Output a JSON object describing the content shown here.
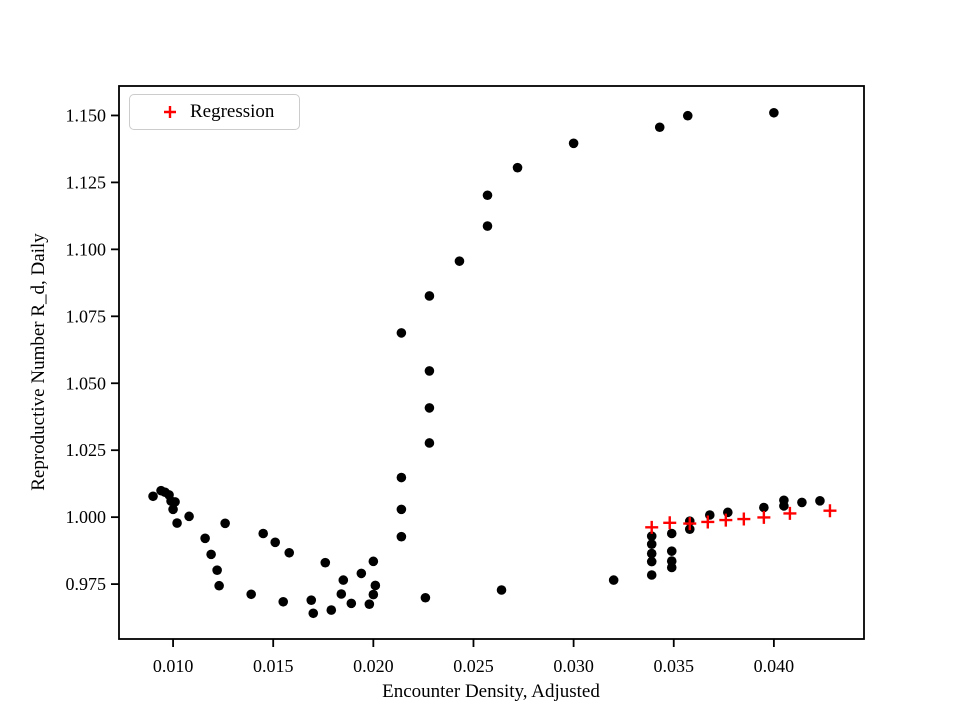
{
  "figure": {
    "background_color": "#ffffff",
    "frame_color": "#000000",
    "dot_color": "#000000",
    "regression_color": "#ff0000"
  },
  "chart_data": {
    "type": "scatter",
    "title": "",
    "xlabel": "Encounter Density, Adjusted",
    "ylabel": "Reproductive Number R_d, Daily",
    "grid": false,
    "xlim": [
      0.0073,
      0.0445
    ],
    "ylim": [
      0.9545,
      1.161
    ],
    "x_ticks": [
      0.01,
      0.015,
      0.02,
      0.025,
      0.03,
      0.035,
      0.04
    ],
    "x_tick_labels": [
      "0.010",
      "0.015",
      "0.020",
      "0.025",
      "0.030",
      "0.035",
      "0.040"
    ],
    "y_ticks": [
      0.975,
      1.0,
      1.025,
      1.05,
      1.075,
      1.1,
      1.125,
      1.15
    ],
    "y_tick_labels": [
      "0.975",
      "1.000",
      "1.025",
      "1.050",
      "1.075",
      "1.100",
      "1.125",
      "1.150"
    ],
    "legend": {
      "position": "upper left",
      "entries": [
        {
          "label": "Regression",
          "marker": "plus",
          "color": "#ff0000"
        }
      ]
    },
    "series": [
      {
        "name": "observations",
        "marker": "circle",
        "color": "#000000",
        "points": [
          [
            0.009,
            1.0078
          ],
          [
            0.0094,
            1.0099
          ],
          [
            0.0096,
            1.0093
          ],
          [
            0.0098,
            1.0083
          ],
          [
            0.0099,
            1.006
          ],
          [
            0.0101,
            1.0057
          ],
          [
            0.01,
            1.0029
          ],
          [
            0.0102,
            0.9978
          ],
          [
            0.0108,
            1.0003
          ],
          [
            0.0116,
            0.9921
          ],
          [
            0.0119,
            0.9861
          ],
          [
            0.0122,
            0.9802
          ],
          [
            0.0123,
            0.9744
          ],
          [
            0.0126,
            0.9977
          ],
          [
            0.0139,
            0.9712
          ],
          [
            0.0145,
            0.9939
          ],
          [
            0.0151,
            0.9906
          ],
          [
            0.0155,
            0.9684
          ],
          [
            0.0158,
            0.9867
          ],
          [
            0.0169,
            0.969
          ],
          [
            0.017,
            0.9641
          ],
          [
            0.0176,
            0.983
          ],
          [
            0.0179,
            0.9653
          ],
          [
            0.0184,
            0.9713
          ],
          [
            0.0185,
            0.9765
          ],
          [
            0.0189,
            0.9678
          ],
          [
            0.0194,
            0.979
          ],
          [
            0.0198,
            0.9675
          ],
          [
            0.02,
            0.9711
          ],
          [
            0.02,
            0.9835
          ],
          [
            0.0201,
            0.9745
          ],
          [
            0.0214,
            0.9927
          ],
          [
            0.0214,
            1.0029
          ],
          [
            0.0214,
            1.0148
          ],
          [
            0.0228,
            1.0277
          ],
          [
            0.0228,
            1.0408
          ],
          [
            0.0228,
            1.0546
          ],
          [
            0.0214,
            1.0688
          ],
          [
            0.0228,
            1.0826
          ],
          [
            0.0243,
            1.0956
          ],
          [
            0.0257,
            1.1087
          ],
          [
            0.0257,
            1.1202
          ],
          [
            0.0272,
            1.1305
          ],
          [
            0.03,
            1.1396
          ],
          [
            0.0343,
            1.1456
          ],
          [
            0.0357,
            1.1499
          ],
          [
            0.04,
            1.151
          ],
          [
            0.0226,
            0.9699
          ],
          [
            0.0264,
            0.9728
          ],
          [
            0.032,
            0.9765
          ],
          [
            0.0339,
            0.9929
          ],
          [
            0.0339,
            0.9899
          ],
          [
            0.0339,
            0.9864
          ],
          [
            0.0339,
            0.9834
          ],
          [
            0.0339,
            0.9784
          ],
          [
            0.0349,
            0.9939
          ],
          [
            0.0349,
            0.9873
          ],
          [
            0.0349,
            0.9836
          ],
          [
            0.0349,
            0.9812
          ],
          [
            0.0358,
            0.9985
          ],
          [
            0.0358,
            0.9955
          ],
          [
            0.0368,
            1.0008
          ],
          [
            0.0377,
            1.0018
          ],
          [
            0.0395,
            1.0036
          ],
          [
            0.0405,
            1.0063
          ],
          [
            0.0405,
            1.0042
          ],
          [
            0.0414,
            1.0055
          ],
          [
            0.0423,
            1.0061
          ]
        ]
      },
      {
        "name": "Regression",
        "marker": "plus",
        "color": "#ff0000",
        "points": [
          [
            0.0339,
            0.9962
          ],
          [
            0.0348,
            0.9979
          ],
          [
            0.0358,
            0.9976
          ],
          [
            0.0367,
            0.9982
          ],
          [
            0.0376,
            0.9989
          ],
          [
            0.0385,
            0.9993
          ],
          [
            0.0395,
            0.9999
          ],
          [
            0.0408,
            1.0014
          ],
          [
            0.0428,
            1.0024
          ]
        ]
      }
    ]
  }
}
